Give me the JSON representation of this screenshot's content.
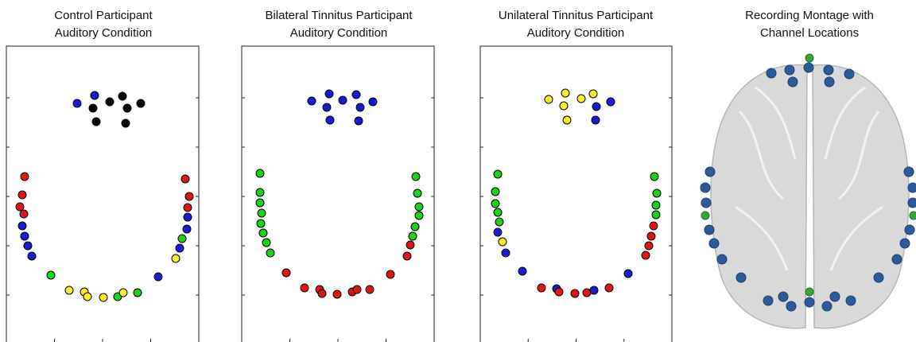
{
  "panels": [
    {
      "title_lines": [
        "Control Participant",
        "Auditory Condition"
      ]
    },
    {
      "title_lines": [
        "Bilateral Tinnitus Participant",
        "Auditory Condition"
      ]
    },
    {
      "title_lines": [
        "Unilateral Tinnitus Participant",
        "Auditory Condition"
      ]
    },
    {
      "title_lines": [
        "Recording Montage with",
        "Channel Locations"
      ]
    }
  ]
}
